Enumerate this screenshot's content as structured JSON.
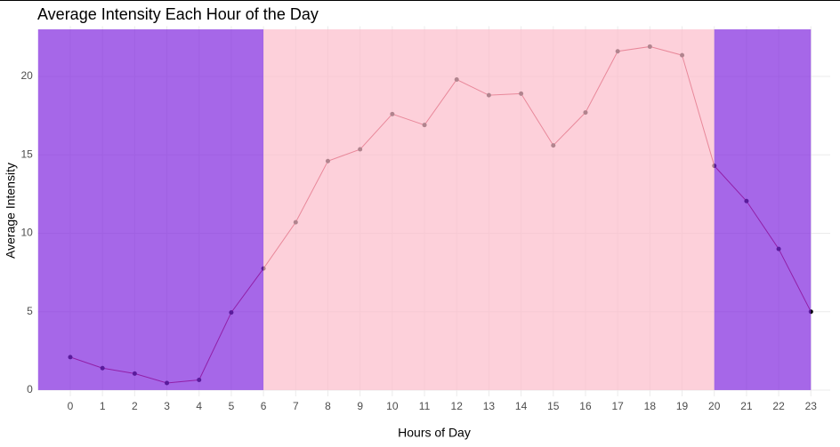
{
  "chart_data": {
    "type": "line",
    "title": "Average Intensity Each Hour of the Day",
    "x_label": "Hours of Day",
    "y_label": "Average Intensity",
    "x": [
      0,
      1,
      2,
      3,
      4,
      5,
      6,
      7,
      8,
      9,
      10,
      11,
      12,
      13,
      14,
      15,
      16,
      17,
      18,
      19,
      20,
      21,
      22,
      23
    ],
    "series": [
      {
        "color": "#b90f2a",
        "point_color": "#000000",
        "values": [
          2.1,
          1.4,
          1.05,
          0.45,
          0.65,
          4.95,
          7.75,
          10.7,
          14.6,
          15.35,
          17.6,
          16.9,
          19.8,
          18.8,
          18.9,
          15.6,
          17.7,
          21.6,
          21.9,
          21.35,
          14.3,
          12.05,
          9.0,
          5.0
        ]
      }
    ],
    "regions": [
      {
        "xmin": -1,
        "xmax": 6,
        "ymin": 0,
        "ymax": 23,
        "color": "#8026de"
      },
      {
        "xmin": 6,
        "xmax": 20,
        "ymin": 0,
        "ymax": 23,
        "color": "#fcbcca"
      },
      {
        "xmin": 20,
        "xmax": 23,
        "ymin": 0,
        "ymax": 23,
        "color": "#8026de"
      }
    ],
    "region_opacity": 0.7,
    "xlim": [
      -1,
      23.6
    ],
    "ylim": [
      -0.4,
      23.2
    ],
    "xticks": [
      0,
      1,
      2,
      3,
      4,
      5,
      6,
      7,
      8,
      9,
      10,
      11,
      12,
      13,
      14,
      15,
      16,
      17,
      18,
      19,
      20,
      21,
      22,
      23
    ],
    "yticks": [
      0,
      5,
      10,
      15,
      20
    ],
    "grid": true
  }
}
